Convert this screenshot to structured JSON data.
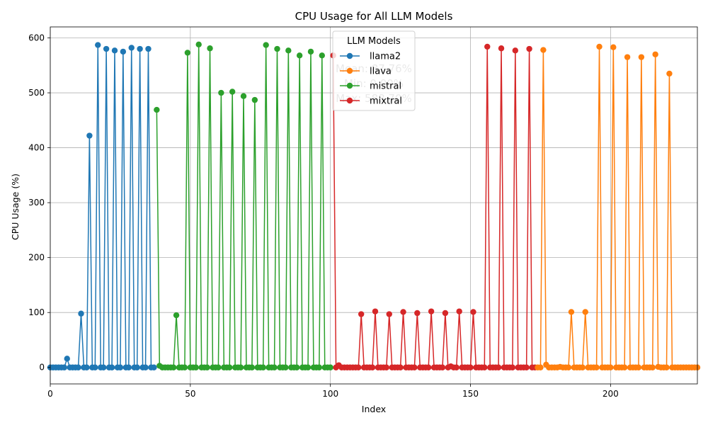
{
  "chart_data": {
    "type": "line",
    "title": "CPU Usage for All LLM Models",
    "xlabel": "Index",
    "ylabel": "CPU Usage (%)",
    "xlim": [
      0,
      231
    ],
    "ylim": [
      -30,
      620
    ],
    "xticks": [
      0,
      50,
      100,
      150,
      200
    ],
    "yticks": [
      0,
      100,
      200,
      300,
      400,
      500,
      600
    ],
    "grid": true,
    "legend": {
      "title": "LLM Models",
      "placement": "top-center"
    },
    "stats_text": [
      "Mean: 87.76%",
      "Min: 0.00%",
      "Max: 588.70%"
    ],
    "series": [
      {
        "name": "llama2",
        "color": "#1f77b4",
        "x_start": 0,
        "values": [
          0,
          0,
          0,
          0,
          0,
          0,
          16,
          0,
          0,
          0,
          0,
          98,
          0,
          0,
          422,
          0,
          0,
          587,
          0,
          0,
          580,
          0,
          0,
          577,
          0,
          0,
          575,
          0,
          0,
          582,
          0,
          0,
          580,
          0,
          0,
          580,
          0,
          0
        ]
      },
      {
        "name": "mistral",
        "color": "#2ca02c",
        "x_start": 38,
        "values": [
          469,
          3,
          0,
          0,
          0,
          0,
          0,
          95,
          0,
          0,
          0,
          573,
          0,
          0,
          0,
          588,
          0,
          0,
          0,
          581,
          0,
          0,
          0,
          500,
          0,
          0,
          0,
          502,
          0,
          0,
          0,
          494,
          0,
          0,
          0,
          487,
          0,
          0,
          0,
          587,
          0,
          0,
          0,
          580,
          0,
          0,
          0,
          577,
          0,
          0,
          0,
          568,
          0,
          0,
          0,
          575,
          0,
          0,
          0,
          568,
          0,
          0,
          0
        ]
      },
      {
        "name": "mixtral",
        "color": "#d62728",
        "x_start": 101,
        "values": [
          568,
          0,
          4,
          0,
          0,
          0,
          0,
          0,
          0,
          0,
          97,
          0,
          0,
          0,
          0,
          102,
          0,
          0,
          0,
          0,
          97,
          0,
          0,
          0,
          0,
          101,
          0,
          0,
          0,
          0,
          99,
          0,
          0,
          0,
          0,
          102,
          0,
          0,
          0,
          0,
          99,
          0,
          2,
          0,
          0,
          102,
          0,
          0,
          0,
          0,
          101,
          0,
          0,
          0,
          0,
          584,
          0,
          0,
          0,
          0,
          581,
          0,
          0,
          0,
          0,
          577,
          0,
          0,
          0,
          0,
          580,
          0,
          0
        ]
      },
      {
        "name": "llava",
        "color": "#ff7f0e",
        "x_start": 174,
        "values": [
          0,
          0,
          578,
          5,
          0,
          0,
          0,
          0,
          1,
          0,
          0,
          0,
          101,
          0,
          0,
          0,
          0,
          101,
          0,
          0,
          0,
          0,
          584,
          0,
          0,
          0,
          0,
          583,
          0,
          0,
          0,
          0,
          565,
          0,
          0,
          0,
          0,
          565,
          0,
          0,
          0,
          0,
          570,
          1,
          0,
          0,
          0,
          535,
          0,
          0,
          0,
          0,
          0,
          0,
          0,
          0,
          0,
          0
        ]
      }
    ]
  }
}
